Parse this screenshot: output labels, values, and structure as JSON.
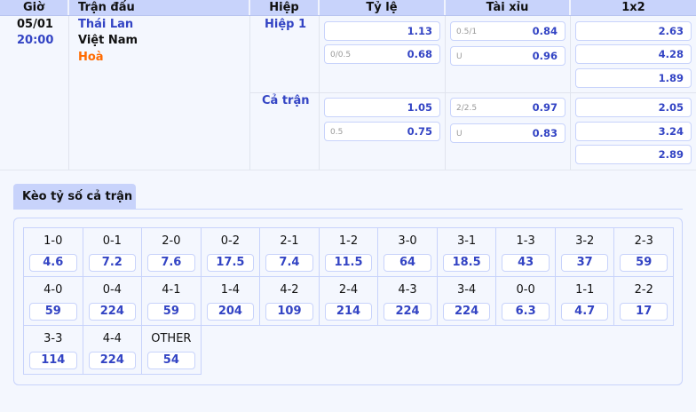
{
  "header": {
    "time": "Giờ",
    "match": "Trận đấu",
    "half": "Hiệp",
    "handicap": "Tỷ lệ",
    "overunder": "Tài xỉu",
    "x12": "1x2"
  },
  "match": {
    "date": "05/01",
    "time": "20:00",
    "home": "Thái Lan",
    "away": "Việt Nam",
    "draw": "Hoà"
  },
  "periods": [
    {
      "name": "Hiệp 1",
      "handicap": [
        {
          "line": "",
          "odds": "1.13"
        },
        {
          "line": "0/0.5",
          "odds": "0.68"
        }
      ],
      "overunder": [
        {
          "line": "0.5/1",
          "odds": "0.84"
        },
        {
          "line": "U",
          "odds": "0.96"
        }
      ],
      "x12": [
        "2.63",
        "4.28",
        "1.89"
      ]
    },
    {
      "name": "Cả trận",
      "handicap": [
        {
          "line": "",
          "odds": "1.05"
        },
        {
          "line": "0.5",
          "odds": "0.75"
        }
      ],
      "overunder": [
        {
          "line": "2/2.5",
          "odds": "0.97"
        },
        {
          "line": "U",
          "odds": "0.83"
        }
      ],
      "x12": [
        "2.05",
        "3.24",
        "2.89"
      ]
    }
  ],
  "correct_score": {
    "tab": "Kèo tỷ số cả trận",
    "items": [
      {
        "score": "1-0",
        "odds": "4.6"
      },
      {
        "score": "0-1",
        "odds": "7.2"
      },
      {
        "score": "2-0",
        "odds": "7.6"
      },
      {
        "score": "0-2",
        "odds": "17.5"
      },
      {
        "score": "2-1",
        "odds": "7.4"
      },
      {
        "score": "1-2",
        "odds": "11.5"
      },
      {
        "score": "3-0",
        "odds": "64"
      },
      {
        "score": "3-1",
        "odds": "18.5"
      },
      {
        "score": "1-3",
        "odds": "43"
      },
      {
        "score": "3-2",
        "odds": "37"
      },
      {
        "score": "2-3",
        "odds": "59"
      },
      {
        "score": "4-0",
        "odds": "59"
      },
      {
        "score": "0-4",
        "odds": "224"
      },
      {
        "score": "4-1",
        "odds": "59"
      },
      {
        "score": "1-4",
        "odds": "204"
      },
      {
        "score": "4-2",
        "odds": "109"
      },
      {
        "score": "2-4",
        "odds": "214"
      },
      {
        "score": "4-3",
        "odds": "224"
      },
      {
        "score": "3-4",
        "odds": "224"
      },
      {
        "score": "0-0",
        "odds": "6.3"
      },
      {
        "score": "1-1",
        "odds": "4.7"
      },
      {
        "score": "2-2",
        "odds": "17"
      },
      {
        "score": "3-3",
        "odds": "114"
      },
      {
        "score": "4-4",
        "odds": "224"
      },
      {
        "score": "OTHER",
        "odds": "54"
      }
    ]
  },
  "colors": {
    "accent": "#3344c4",
    "header_bg": "#c8d3fb",
    "draw": "#ff6a00"
  }
}
